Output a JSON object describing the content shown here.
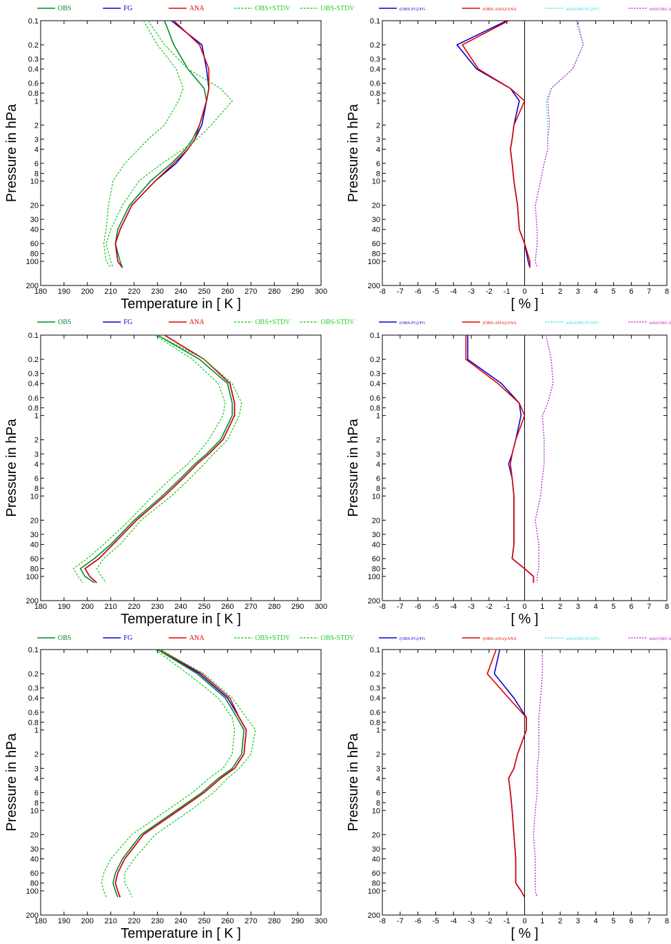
{
  "chart_data": [
    {
      "type": "line",
      "xlabel": "Temperature in [ K ]",
      "ylabel": "Pressure in hPa",
      "xlim": [
        180,
        300
      ],
      "xticks": [
        180,
        190,
        200,
        210,
        220,
        230,
        240,
        250,
        260,
        270,
        280,
        290,
        300
      ],
      "ylim": [
        0.1,
        200
      ],
      "yscale": "log",
      "yinvert": true,
      "yticks": [
        "0.1",
        "0.2",
        "0.3",
        "0.4",
        "0.6",
        "0.8",
        "1",
        "2",
        "3",
        "4",
        "6",
        "8",
        "10",
        "20",
        "30",
        "40",
        "60",
        "80",
        "100",
        "200"
      ],
      "legend": "top",
      "pressure": [
        0.1,
        0.2,
        0.4,
        0.7,
        1,
        2,
        3,
        4,
        6,
        10,
        20,
        40,
        60,
        100,
        120
      ],
      "series": [
        {
          "name": "OBS",
          "color": "#00882a",
          "dash": "",
          "values": [
            233,
            237,
            243,
            250,
            251,
            248,
            245,
            242,
            236,
            227,
            218,
            213,
            212,
            214,
            215
          ]
        },
        {
          "name": "FG",
          "color": "#0000cc",
          "dash": "",
          "values": [
            236,
            249,
            251,
            252,
            251,
            249,
            246,
            243,
            238,
            229,
            219,
            214,
            212,
            213,
            215
          ]
        },
        {
          "name": "ANA",
          "color": "#dd0000",
          "dash": "",
          "values": [
            237,
            248,
            252,
            252,
            251,
            248,
            246,
            243,
            237,
            229,
            219,
            214,
            212,
            213,
            215
          ]
        },
        {
          "name": "OBS+STDV",
          "color": "#22cc22",
          "dash": "3,2",
          "values": [
            226,
            233,
            243,
            257,
            262,
            253,
            247,
            241,
            232,
            222,
            215,
            210,
            208,
            210,
            211
          ]
        },
        {
          "name": "OBS-STDV",
          "color": "#22cc22",
          "dash": "3,2",
          "values": [
            224,
            230,
            238,
            241,
            239,
            233,
            226,
            222,
            216,
            211,
            209,
            208,
            207,
            208,
            210
          ]
        }
      ]
    },
    {
      "type": "line",
      "xlabel": "[ % ]",
      "ylabel": "Pressure in hPa",
      "xlim": [
        -8,
        8
      ],
      "xticks": [
        -8,
        -7,
        -6,
        -5,
        -4,
        -3,
        -2,
        -1,
        0,
        1,
        2,
        3,
        4,
        5,
        6,
        7,
        8
      ],
      "ylim": [
        0.1,
        200
      ],
      "yscale": "log",
      "yinvert": true,
      "yticks": [
        "0.1",
        "0.2",
        "0.3",
        "0.4",
        "0.6",
        "0.8",
        "1",
        "2",
        "3",
        "4",
        "6",
        "8",
        "10",
        "20",
        "30",
        "40",
        "60",
        "80",
        "100",
        "200"
      ],
      "legend": "top",
      "zero_line": 0,
      "pressure": [
        0.1,
        0.2,
        0.4,
        0.7,
        1,
        2,
        3,
        4,
        6,
        10,
        20,
        40,
        60,
        100,
        120
      ],
      "series": [
        {
          "name": "(OBS-FG)/FG",
          "color": "#0000cc",
          "dash": "",
          "values": [
            -1.0,
            -3.8,
            -2.7,
            -0.8,
            -0.3,
            -0.6,
            -0.7,
            -0.8,
            -0.7,
            -0.6,
            -0.4,
            -0.3,
            0.0,
            0.2,
            0.3
          ]
        },
        {
          "name": "(OBS-ANA)/ANA",
          "color": "#dd0000",
          "dash": "",
          "values": [
            -0.9,
            -3.5,
            -2.6,
            -0.8,
            0.0,
            -0.6,
            -0.7,
            -0.8,
            -0.7,
            -0.6,
            -0.4,
            -0.3,
            0.0,
            0.3,
            0.3
          ]
        },
        {
          "name": "stdv(OBS-FG)/FG",
          "color": "#33dddd",
          "dash": "2,2",
          "values": [
            3.0,
            3.3,
            2.7,
            1.5,
            1.2,
            1.3,
            1.3,
            1.3,
            1.1,
            0.9,
            0.6,
            0.7,
            0.7,
            0.6,
            0.7
          ]
        },
        {
          "name": "stdv(OBS-AN)/ANA",
          "color": "#cc22cc",
          "dash": "2,2",
          "values": [
            2.9,
            3.3,
            2.7,
            1.5,
            1.3,
            1.4,
            1.3,
            1.3,
            1.1,
            0.9,
            0.6,
            0.7,
            0.7,
            0.6,
            0.7
          ]
        }
      ]
    },
    {
      "type": "line",
      "xlabel": "Temperature in [ K ]",
      "ylabel": "Pressure in hPa",
      "xlim": [
        180,
        300
      ],
      "xticks": [
        180,
        190,
        200,
        210,
        220,
        230,
        240,
        250,
        260,
        270,
        280,
        290,
        300
      ],
      "ylim": [
        0.1,
        200
      ],
      "yscale": "log",
      "yinvert": true,
      "yticks": [
        "0.1",
        "0.2",
        "0.3",
        "0.4",
        "0.6",
        "0.8",
        "1",
        "2",
        "3",
        "4",
        "6",
        "8",
        "10",
        "20",
        "30",
        "40",
        "60",
        "80",
        "100",
        "200"
      ],
      "legend": "top",
      "pressure": [
        0.1,
        0.2,
        0.4,
        0.7,
        1,
        2,
        3,
        4,
        6,
        10,
        20,
        40,
        60,
        80,
        100,
        120
      ],
      "series": [
        {
          "name": "OBS",
          "color": "#00882a",
          "dash": "",
          "values": [
            230,
            248,
            260,
            262,
            262,
            257,
            251,
            246,
            240,
            232,
            220,
            210,
            203,
            197,
            199,
            203
          ]
        },
        {
          "name": "FG",
          "color": "#0000cc",
          "dash": "",
          "values": [
            233,
            250,
            261,
            263,
            263,
            258,
            252,
            247,
            241,
            233,
            221,
            211,
            205,
            199,
            201,
            204
          ]
        },
        {
          "name": "ANA",
          "color": "#dd0000",
          "dash": "",
          "values": [
            233,
            250,
            261,
            263,
            263,
            258,
            252,
            247,
            241,
            233,
            221,
            211,
            205,
            199,
            201,
            204
          ]
        },
        {
          "name": "OBS+STDV",
          "color": "#22cc22",
          "dash": "3,2",
          "values": [
            230,
            250,
            262,
            266,
            265,
            260,
            254,
            250,
            244,
            236,
            223,
            214,
            207,
            204,
            206,
            208
          ]
        },
        {
          "name": "OBS-STDV",
          "color": "#22cc22",
          "dash": "3,2",
          "values": [
            229,
            245,
            256,
            259,
            258,
            252,
            247,
            243,
            236,
            228,
            218,
            207,
            200,
            194,
            196,
            198
          ]
        }
      ]
    },
    {
      "type": "line",
      "xlabel": "[ % ]",
      "ylabel": "Pressure in hPa",
      "xlim": [
        -8,
        8
      ],
      "xticks": [
        -8,
        -7,
        -6,
        -5,
        -4,
        -3,
        -2,
        -1,
        0,
        1,
        2,
        3,
        4,
        5,
        6,
        7,
        8
      ],
      "ylim": [
        0.1,
        200
      ],
      "yscale": "log",
      "yinvert": true,
      "yticks": [
        "0.1",
        "0.2",
        "0.3",
        "0.4",
        "0.6",
        "0.8",
        "1",
        "2",
        "3",
        "4",
        "6",
        "8",
        "10",
        "20",
        "30",
        "40",
        "60",
        "80",
        "100",
        "200"
      ],
      "legend": "top",
      "zero_line": 0,
      "pressure": [
        0.1,
        0.2,
        0.4,
        0.7,
        1,
        2,
        3,
        4,
        6,
        10,
        20,
        40,
        60,
        80,
        100,
        120
      ],
      "series": [
        {
          "name": "(OBS-FG)/FG",
          "color": "#0000cc",
          "dash": "",
          "values": [
            -3.2,
            -3.2,
            -1.3,
            -0.3,
            -0.2,
            -0.5,
            -0.7,
            -0.9,
            -0.7,
            -0.6,
            -0.6,
            -0.6,
            -0.7,
            0.0,
            0.5,
            0.5
          ]
        },
        {
          "name": "(OBS-ANA)/ANA",
          "color": "#dd0000",
          "dash": "",
          "values": [
            -3.3,
            -3.3,
            -1.5,
            -0.3,
            0.0,
            -0.5,
            -0.7,
            -0.8,
            -0.7,
            -0.6,
            -0.6,
            -0.6,
            -0.7,
            0.0,
            0.5,
            0.5
          ]
        },
        {
          "name": "stdv(OBS-FG)/FG",
          "color": "#33dddd",
          "dash": "2,2",
          "values": [
            1.2,
            1.5,
            1.6,
            1.3,
            1.0,
            1.1,
            1.1,
            1.1,
            1.0,
            0.9,
            0.6,
            0.8,
            0.8,
            0.8,
            0.7,
            0.7
          ]
        },
        {
          "name": "stdv(OBS-AN)/ANA",
          "color": "#cc22cc",
          "dash": "2,2",
          "values": [
            1.2,
            1.5,
            1.6,
            1.3,
            1.0,
            1.1,
            1.1,
            1.1,
            1.0,
            0.9,
            0.6,
            0.8,
            0.8,
            0.8,
            0.7,
            0.7
          ]
        }
      ]
    },
    {
      "type": "line",
      "xlabel": "Temperature in [ K ]",
      "ylabel": "Pressure in hPa",
      "xlim": [
        180,
        300
      ],
      "xticks": [
        180,
        190,
        200,
        210,
        220,
        230,
        240,
        250,
        260,
        270,
        280,
        290,
        300
      ],
      "ylim": [
        0.1,
        200
      ],
      "yscale": "log",
      "yinvert": true,
      "yticks": [
        "0.1",
        "0.2",
        "0.3",
        "0.4",
        "0.6",
        "0.8",
        "1",
        "2",
        "3",
        "4",
        "6",
        "8",
        "10",
        "20",
        "30",
        "40",
        "60",
        "80",
        "100",
        "200"
      ],
      "legend": "top",
      "pressure": [
        0.1,
        0.2,
        0.4,
        0.7,
        1,
        2,
        3,
        4,
        6,
        10,
        20,
        40,
        60,
        80,
        100,
        120
      ],
      "series": [
        {
          "name": "OBS",
          "color": "#00882a",
          "dash": "",
          "values": [
            230,
            247,
            259,
            264,
            267,
            266,
            262,
            256,
            249,
            238,
            223,
            215,
            212,
            211,
            212,
            213
          ]
        },
        {
          "name": "FG",
          "color": "#0000cc",
          "dash": "",
          "values": [
            231,
            248,
            260,
            265,
            268,
            267,
            263,
            257,
            250,
            239,
            224,
            216,
            213,
            212,
            213,
            214
          ]
        },
        {
          "name": "ANA",
          "color": "#dd0000",
          "dash": "",
          "values": [
            231,
            249,
            261,
            265,
            268,
            267,
            263,
            257,
            250,
            239,
            224,
            216,
            213,
            212,
            213,
            214
          ]
        },
        {
          "name": "OBS+STDV",
          "color": "#22cc22",
          "dash": "3,2",
          "values": [
            231,
            250,
            262,
            268,
            272,
            270,
            265,
            260,
            254,
            244,
            229,
            220,
            216,
            216,
            218,
            219
          ]
        },
        {
          "name": "OBS-STDV",
          "color": "#22cc22",
          "dash": "3,2",
          "values": [
            229,
            243,
            256,
            262,
            263,
            262,
            258,
            252,
            245,
            234,
            219,
            210,
            207,
            206,
            207,
            208
          ]
        }
      ]
    },
    {
      "type": "line",
      "xlabel": "[ % ]",
      "ylabel": "Pressure in hPa",
      "xlim": [
        -8,
        8
      ],
      "xticks": [
        -8,
        -7,
        -6,
        -5,
        -4,
        -3,
        -2,
        -1,
        0,
        1,
        2,
        3,
        4,
        5,
        6,
        7,
        8
      ],
      "ylim": [
        0.1,
        200
      ],
      "yscale": "log",
      "yinvert": true,
      "yticks": [
        "0.1",
        "0.2",
        "0.3",
        "0.4",
        "0.6",
        "0.8",
        "1",
        "2",
        "3",
        "4",
        "6",
        "8",
        "10",
        "20",
        "30",
        "40",
        "60",
        "80",
        "100",
        "200"
      ],
      "legend": "top",
      "zero_line": 0,
      "pressure": [
        0.1,
        0.2,
        0.4,
        0.7,
        1,
        2,
        3,
        4,
        6,
        10,
        20,
        40,
        60,
        80,
        100,
        120
      ],
      "series": [
        {
          "name": "(OBS-FG)/FG",
          "color": "#0000cc",
          "dash": "",
          "values": [
            -1.4,
            -1.7,
            -0.6,
            0.1,
            0.1,
            -0.4,
            -0.6,
            -0.9,
            -0.8,
            -0.7,
            -0.6,
            -0.5,
            -0.5,
            -0.5,
            -0.2,
            0.0
          ]
        },
        {
          "name": "(OBS-ANA)/ANA",
          "color": "#dd0000",
          "dash": "",
          "values": [
            -1.6,
            -2.1,
            -0.9,
            0.1,
            0.1,
            -0.4,
            -0.6,
            -0.9,
            -0.8,
            -0.7,
            -0.6,
            -0.5,
            -0.5,
            -0.5,
            -0.2,
            0.0
          ]
        },
        {
          "name": "stdv(OBS-FG)/FG",
          "color": "#33dddd",
          "dash": "2,2",
          "values": [
            1.0,
            1.0,
            0.9,
            0.8,
            0.8,
            0.8,
            0.7,
            0.7,
            0.7,
            0.6,
            0.5,
            0.6,
            0.6,
            0.6,
            0.6,
            0.7
          ]
        },
        {
          "name": "stdv(OBS-AN)/ANA",
          "color": "#cc22cc",
          "dash": "2,2",
          "values": [
            1.0,
            1.0,
            0.9,
            0.8,
            0.8,
            0.8,
            0.7,
            0.7,
            0.7,
            0.6,
            0.5,
            0.6,
            0.6,
            0.6,
            0.6,
            0.7
          ]
        }
      ]
    }
  ]
}
